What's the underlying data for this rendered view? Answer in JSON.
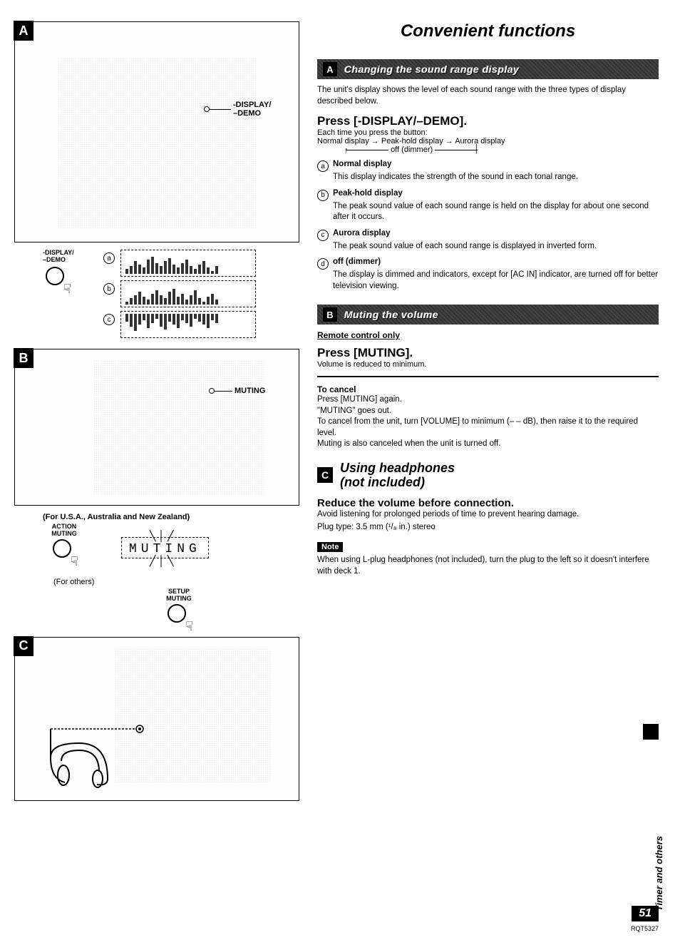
{
  "page": {
    "main_title": "Convenient functions",
    "side_tab": "Timer and others",
    "page_number": "51",
    "page_code": "RQT5327"
  },
  "figA": {
    "badge": "A",
    "callout1_line1": "-DISPLAY/",
    "callout1_line2": "–DEMO",
    "mid_label_line1": "-DISPLAY/",
    "mid_label_line2": "–DEMO",
    "rows": {
      "a": "a",
      "b": "b",
      "c": "c"
    },
    "bars_a": [
      3,
      5,
      8,
      6,
      4,
      9,
      11,
      7,
      5,
      8,
      10,
      6,
      4,
      7,
      9,
      5,
      3,
      6,
      8,
      4,
      2,
      5
    ],
    "bars_b": [
      2,
      4,
      6,
      8,
      5,
      3,
      7,
      9,
      6,
      4,
      8,
      10,
      5,
      7,
      3,
      6,
      9,
      4,
      2,
      5,
      7,
      3
    ],
    "bars_c": [
      5,
      8,
      11,
      7,
      4,
      9,
      6,
      3,
      8,
      10,
      5,
      7,
      9,
      4,
      6,
      8,
      3,
      5,
      7,
      9,
      4,
      6
    ]
  },
  "figB": {
    "badge": "B",
    "callout": "MUTING",
    "region_note": "(For U.S.A., Australia and New Zealand)",
    "action_line1": "ACTION",
    "action_line2": "MUTING",
    "others_note": "(For others)",
    "setup_line1": "SETUP",
    "setup_line2": "MUTING",
    "seg_text": "MUTING"
  },
  "figC": {
    "badge": "C"
  },
  "secA": {
    "letter": "A",
    "title": "Changing the sound range display",
    "intro": "The unit's display shows the level of each sound range with the three types of display described below.",
    "press_title": "Press [-DISPLAY/–DEMO].",
    "press_sub": "Each time you press the button:",
    "flow": "Normal display → Peak-hold display → Aurora display",
    "flow_off": "off (dimmer)",
    "items": [
      {
        "letter": "a",
        "title": "Normal display",
        "body": "This display indicates the strength of the sound in each tonal range."
      },
      {
        "letter": "b",
        "title": "Peak-hold display",
        "body": "The peak sound value of each sound range is held on the display for about one second after it occurs."
      },
      {
        "letter": "c",
        "title": "Aurora display",
        "body": "The peak sound value of each sound range is displayed in inverted form."
      },
      {
        "letter": "d",
        "title": "off (dimmer)",
        "body": "The display is dimmed and indicators, except for [AC IN] indicator, are turned off for better television viewing."
      }
    ]
  },
  "secB": {
    "letter": "B",
    "title": "Muting the volume",
    "remote_only": "Remote control only",
    "press_title": "Press [MUTING].",
    "press_body": "Volume is reduced to minimum.",
    "cancel_title": "To cancel",
    "cancel_lines": [
      "Press [MUTING] again.",
      "\"MUTING\" goes out.",
      "To cancel from the unit, turn [VOLUME] to minimum (– – dB), then raise it to the required level.",
      "Muting is also canceled when the unit is turned off."
    ]
  },
  "secC": {
    "letter": "C",
    "title_line1": "Using headphones",
    "title_line2": "(not included)",
    "reduce_title": "Reduce the volume before connection.",
    "reduce_body1": "Avoid listening for prolonged periods of time to prevent hearing damage.",
    "reduce_body2": "Plug type: 3.5 mm (¹/₈ in.) stereo",
    "note_label": "Note",
    "note_body": "When using L-plug headphones (not included), turn the plug to the left so it doesn't interfere with deck 1."
  }
}
